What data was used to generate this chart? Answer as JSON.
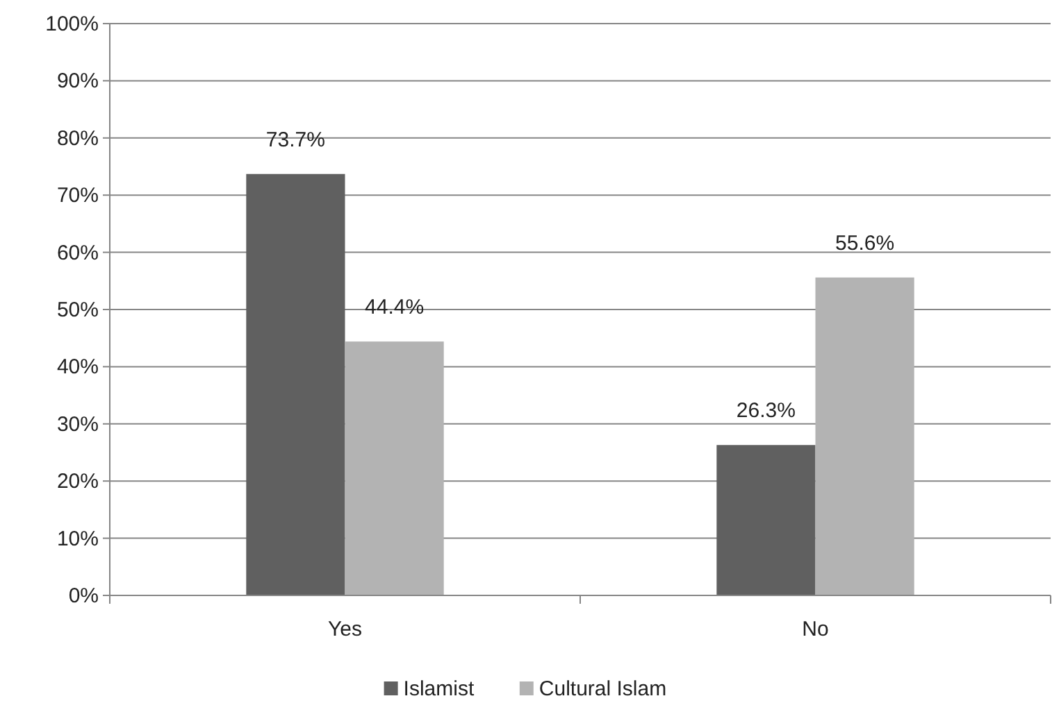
{
  "chart_data": {
    "type": "bar",
    "categories": [
      "Yes",
      "No"
    ],
    "series": [
      {
        "name": "Islamist",
        "color": "#606060",
        "values": [
          73.7,
          26.3
        ],
        "value_labels": [
          "73.7%",
          "26.3%"
        ]
      },
      {
        "name": "Cultural Islam",
        "color": "#b3b3b3",
        "values": [
          44.4,
          55.6
        ],
        "value_labels": [
          "44.4%",
          "55.6%"
        ]
      }
    ],
    "ylim": [
      0,
      100
    ],
    "yticks": [
      {
        "value": 0,
        "label": "0%"
      },
      {
        "value": 10,
        "label": "10%"
      },
      {
        "value": 20,
        "label": "20%"
      },
      {
        "value": 30,
        "label": "30%"
      },
      {
        "value": 40,
        "label": "40%"
      },
      {
        "value": 50,
        "label": "50%"
      },
      {
        "value": 60,
        "label": "60%"
      },
      {
        "value": 70,
        "label": "70%"
      },
      {
        "value": 80,
        "label": "80%"
      },
      {
        "value": 90,
        "label": "90%"
      },
      {
        "value": 100,
        "label": "100%"
      }
    ],
    "grid": "y",
    "legend": "bottom"
  }
}
